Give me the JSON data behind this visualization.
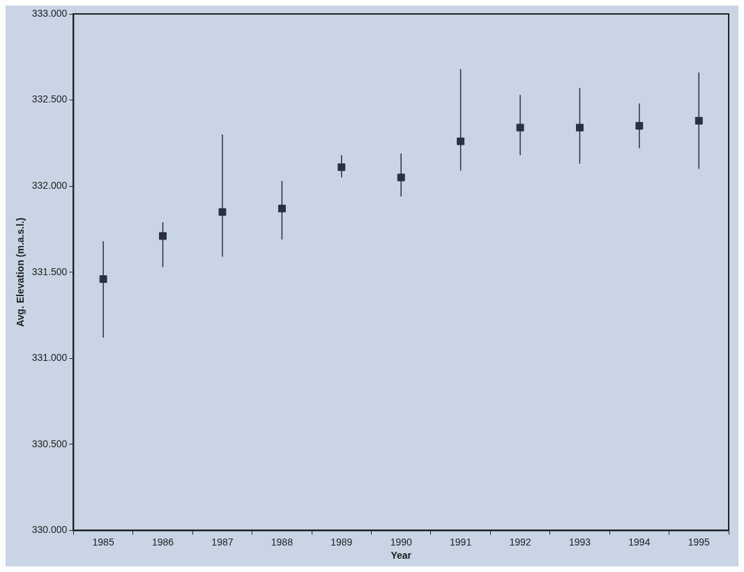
{
  "chart_data": {
    "type": "scatter",
    "xlabel": "Year",
    "ylabel": "Avg. Elevation (m.a.s.l.)",
    "categories": [
      "1985",
      "1986",
      "1987",
      "1988",
      "1989",
      "1990",
      "1991",
      "1992",
      "1993",
      "1994",
      "1995"
    ],
    "values": [
      331.46,
      331.71,
      331.85,
      331.87,
      332.11,
      332.05,
      332.26,
      332.34,
      332.34,
      332.35,
      332.38
    ],
    "errors": [
      [
        331.12,
        331.68
      ],
      [
        331.53,
        331.79
      ],
      [
        331.59,
        332.3
      ],
      [
        331.69,
        332.03
      ],
      [
        332.05,
        332.18
      ],
      [
        331.94,
        332.19
      ],
      [
        332.09,
        332.68
      ],
      [
        332.18,
        332.53
      ],
      [
        332.13,
        332.57
      ],
      [
        332.22,
        332.48
      ],
      [
        332.1,
        332.66
      ]
    ],
    "color": "#2a3040",
    "marker": "square",
    "grid": false,
    "legend": false,
    "ylim": [
      330,
      333
    ],
    "yticks": [
      {
        "value": 330,
        "label": "330.000"
      },
      {
        "value": 330.5,
        "label": "330.500"
      },
      {
        "value": 331,
        "label": "331.000"
      },
      {
        "value": 331.5,
        "label": "331.500"
      },
      {
        "value": 332,
        "label": "332.000"
      },
      {
        "value": 332.5,
        "label": "332.500"
      },
      {
        "value": 333,
        "label": "333.000"
      }
    ]
  }
}
